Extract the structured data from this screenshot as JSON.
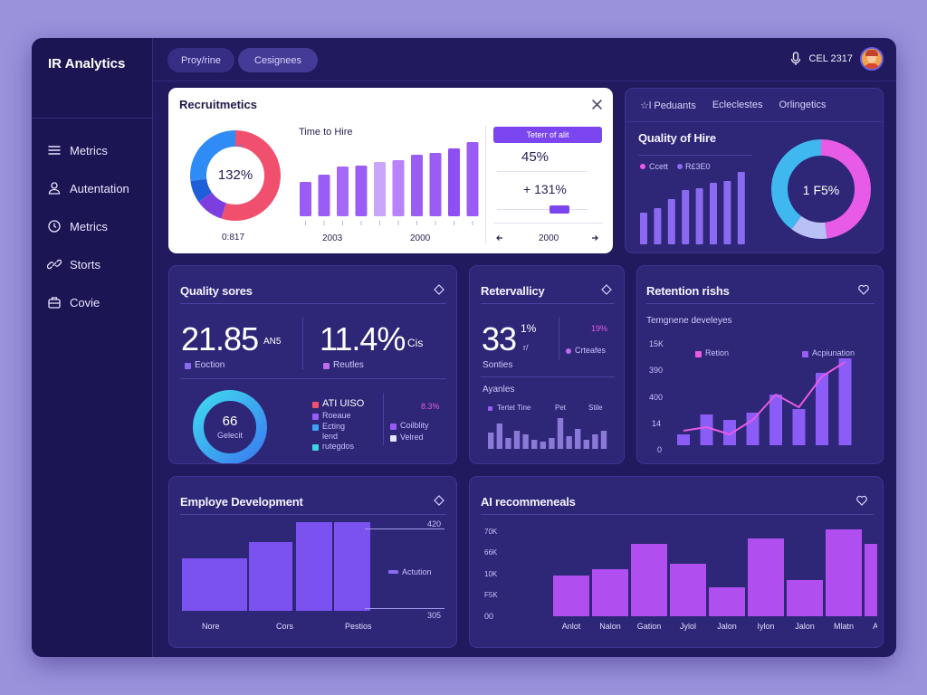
{
  "app": {
    "title": "IR Analytics"
  },
  "sidebar": {
    "items": [
      {
        "label": "Metrics",
        "icon": "menu-icon"
      },
      {
        "label": "Autentation",
        "icon": "user-icon"
      },
      {
        "label": "Metrics",
        "icon": "clock-icon"
      },
      {
        "label": "Storts",
        "icon": "link-icon"
      },
      {
        "label": "Covie",
        "icon": "briefcase-icon"
      }
    ]
  },
  "topbar": {
    "tabs": [
      {
        "label": "Proy/rine"
      },
      {
        "label": "Cesignees"
      }
    ],
    "user_code": "CEL 2317",
    "mic_icon": "microphone-icon"
  },
  "recruit": {
    "title": "Recruitmetics",
    "donut_value": "132%",
    "donut_caption": "0:817",
    "donut_segments": [
      {
        "color": "#f0506e",
        "value": 55
      },
      {
        "color": "#7b3fe0",
        "value": 10
      },
      {
        "color": "#1e5fd8",
        "value": 8
      },
      {
        "color": "#2f8bf5",
        "value": 27
      }
    ],
    "bar_title": "Time to Hire",
    "bars": [
      38,
      46,
      55,
      56,
      60,
      62,
      68,
      70,
      75,
      82,
      88
    ],
    "bar_colors": [
      "#9b5cf6",
      "#9b5cf6",
      "#a56af5",
      "#9b5cf6",
      "#c9a5fb",
      "#b782fa",
      "#9b5cf6",
      "#9b5cf6",
      "#8f4ff0",
      "#9b5cf6",
      "#8f4ff0"
    ],
    "tick_marks": [
      "1",
      "2",
      "3",
      "4",
      "5",
      "6",
      "7",
      "8",
      "9",
      "0",
      "1"
    ],
    "x_labels": [
      "2003",
      "2000"
    ],
    "button_label": "Teterr of alit",
    "stat1": "45%",
    "stat2": "+ 131%",
    "nav_label": "2000",
    "prev_icon": "arrow-left-icon",
    "next_icon": "arrow-right-icon",
    "close_icon": "close-icon"
  },
  "quality_hire": {
    "tabs": [
      {
        "label": "☆l Peduants"
      },
      {
        "label": "Ecleclestes"
      },
      {
        "label": "Orlingetics"
      }
    ],
    "title": "Quality of Hire",
    "legend": [
      {
        "label": "Ccett",
        "color": "#e75be6"
      },
      {
        "label": "R£3E0",
        "color": "#8b6af2"
      }
    ],
    "bars": [
      35,
      40,
      50,
      60,
      62,
      68,
      70,
      80
    ],
    "donut_value": "1 F5%",
    "donut_segments": [
      {
        "color": "#e75be6",
        "value": 48
      },
      {
        "color": "#b8c0f5",
        "value": 12
      },
      {
        "color": "#3fb8f0",
        "value": 40
      }
    ]
  },
  "quality_scores": {
    "title": "Quality sores",
    "stat1_value": "21.85",
    "stat1_unit": "AN5",
    "stat1_label": "Eoction",
    "stat2_value": "11.4%",
    "stat2_unit": "Cis",
    "stat2_label": "Reutles",
    "ring_value": "66",
    "ring_label": "Gelecit",
    "legend_a": [
      {
        "label": "ATI UISO",
        "color": "#f0506e"
      },
      {
        "label": "Roeaue",
        "color": "#9b5cf6"
      },
      {
        "label": "Ecting",
        "color": "#3fa0f5"
      },
      {
        "label": "lend",
        "color": ""
      },
      {
        "label": "rutegdos",
        "color": "#3fd5e0"
      }
    ],
    "legend_b_value": "8.3%",
    "legend_b": [
      {
        "label": "Coilblity",
        "color": "#9b5cf6"
      },
      {
        "label": "Velred",
        "color": "#e8e6ff"
      }
    ]
  },
  "retervality": {
    "title": "Retervallicy",
    "big_value": "33",
    "big_sup": "1%",
    "big_sub": "r/",
    "sub_label": "Sonties",
    "right_value": "19%",
    "right_label": "Crteafes",
    "mini_title": "Ayanles",
    "mini_legend": [
      "Tertet Tine",
      "Pet",
      "Stile"
    ],
    "mini_bars": [
      18,
      28,
      12,
      20,
      16,
      10,
      8,
      12,
      34,
      14,
      22,
      10,
      16,
      20
    ]
  },
  "retention": {
    "title": "Retention rishs",
    "subtitle": "Temgnene develeyes",
    "legend": [
      {
        "label": "Retion",
        "color": "#e75be6"
      },
      {
        "label": "Acpiunation",
        "color": "#9b5cf6"
      }
    ],
    "y_labels": [
      "15K",
      "390",
      "400",
      "14",
      "0"
    ],
    "bars": [
      12,
      34,
      28,
      36,
      56,
      40,
      80,
      96
    ],
    "line": [
      16,
      20,
      12,
      28,
      56,
      42,
      76,
      92
    ]
  },
  "development": {
    "title": "Employe Development",
    "bars": [
      58,
      76,
      98,
      98
    ],
    "x_labels": [
      "Nore",
      "Cors",
      "Pestios"
    ],
    "top_label": "420",
    "bottom_label": "305",
    "legend_label": "Actution"
  },
  "ai_rec": {
    "title": "AI recommeneals",
    "y_labels": [
      "70K",
      "66K",
      "10K",
      "F5K",
      "00"
    ],
    "bars": [
      45,
      52,
      80,
      58,
      32,
      86,
      40,
      96,
      80
    ],
    "x_labels": [
      "Anlot",
      "Nalon",
      "Gation",
      "Jylol",
      "Jalon",
      "Iylon",
      "Jalon",
      "Mlatn",
      "Aylos"
    ]
  }
}
